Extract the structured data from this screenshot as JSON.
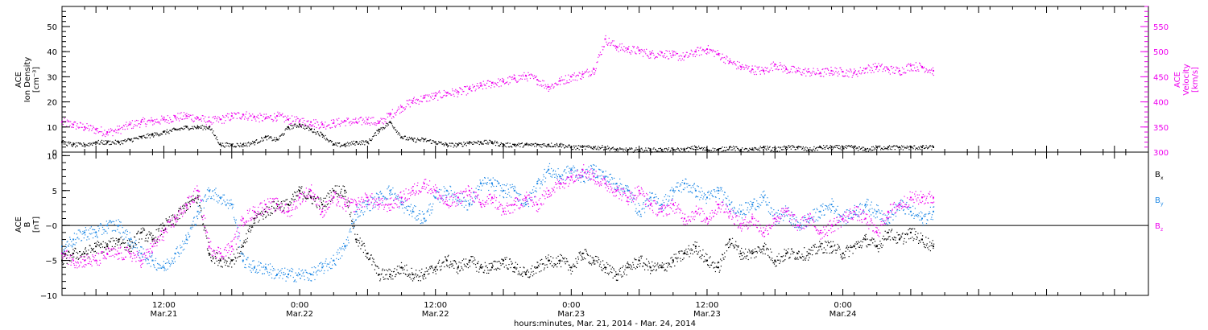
{
  "chart_data": [
    {
      "type": "scatter",
      "panel": "plasma",
      "left_axis_label_lines": [
        "ACE",
        "Ion Density",
        "[cm⁻³]"
      ],
      "right_axis_label_lines": [
        "ACE",
        "Velocity",
        "[km/s]"
      ],
      "left_ylim": [
        0,
        58
      ],
      "left_yticks": [
        0,
        10,
        20,
        30,
        40,
        50
      ],
      "right_ylim": [
        300,
        590
      ],
      "right_yticks": [
        300,
        350,
        400,
        450,
        500,
        550
      ],
      "grid": false,
      "colors": {
        "density": "#000000",
        "velocity": "#ee00ee"
      },
      "series": [
        {
          "key": "density",
          "axis": "left",
          "x_hours": [
            0,
            1,
            2,
            3,
            4,
            5,
            6,
            7,
            8,
            9,
            10,
            11,
            12,
            13,
            14,
            15,
            16,
            17,
            18,
            19,
            20,
            21,
            22,
            23,
            24,
            25,
            26,
            27,
            28,
            29,
            30,
            31,
            32,
            33,
            34,
            35,
            36,
            37,
            38,
            39,
            40,
            41,
            42,
            43,
            44,
            45,
            46,
            47,
            48,
            49,
            50,
            51,
            52,
            53,
            54,
            55,
            56,
            57,
            58,
            59,
            60,
            61,
            62,
            63,
            64,
            65,
            66,
            67,
            68,
            69,
            70,
            71,
            72,
            73,
            74,
            75,
            76,
            77
          ],
          "values": [
            4,
            3,
            3,
            4,
            4,
            4,
            5,
            6,
            7,
            8,
            9,
            10,
            10,
            10,
            3,
            3,
            3,
            4,
            6,
            5,
            10,
            11,
            9,
            7,
            3,
            3,
            4,
            4,
            9,
            12,
            6,
            5,
            5,
            4,
            3,
            3,
            4,
            4,
            4,
            3,
            3,
            3,
            3,
            3,
            3,
            2,
            2,
            2,
            2,
            1,
            1,
            1,
            1,
            1,
            1,
            1,
            2,
            1,
            1,
            2,
            1,
            1,
            2,
            1,
            2,
            2,
            1,
            2,
            2,
            2,
            2,
            1,
            2,
            2,
            2,
            2,
            2,
            2
          ]
        },
        {
          "key": "velocity",
          "axis": "right",
          "x_hours": [
            0,
            1,
            2,
            3,
            4,
            5,
            6,
            7,
            8,
            9,
            10,
            11,
            12,
            13,
            14,
            15,
            16,
            17,
            18,
            19,
            20,
            21,
            22,
            23,
            24,
            25,
            26,
            27,
            28,
            29,
            30,
            31,
            32,
            33,
            34,
            35,
            36,
            37,
            38,
            39,
            40,
            41,
            42,
            43,
            44,
            45,
            46,
            47,
            48,
            49,
            50,
            51,
            52,
            53,
            54,
            55,
            56,
            57,
            58,
            59,
            60,
            61,
            62,
            63,
            64,
            65,
            66,
            67,
            68,
            69,
            70,
            71,
            72,
            73,
            74,
            75,
            76,
            77
          ],
          "values": [
            360,
            355,
            350,
            345,
            340,
            345,
            355,
            360,
            362,
            365,
            370,
            372,
            368,
            362,
            365,
            372,
            375,
            370,
            368,
            372,
            365,
            362,
            360,
            355,
            358,
            362,
            360,
            365,
            358,
            375,
            390,
            402,
            408,
            412,
            418,
            420,
            425,
            432,
            438,
            440,
            447,
            452,
            444,
            430,
            442,
            450,
            455,
            465,
            525,
            510,
            505,
            502,
            495,
            498,
            493,
            490,
            500,
            505,
            495,
            480,
            470,
            465,
            462,
            475,
            465,
            462,
            460,
            458,
            462,
            460,
            458,
            466,
            470,
            465,
            462,
            472,
            470,
            462
          ]
        }
      ]
    },
    {
      "type": "scatter",
      "panel": "magnetic",
      "left_axis_label_lines": [
        "ACE",
        "B",
        "[nT]"
      ],
      "ylim": [
        -10,
        10.5
      ],
      "yticks": [
        -10,
        -5,
        0,
        5,
        10
      ],
      "ytick_labels": [
        "−10",
        "−5",
        "−0",
        "5",
        "10"
      ],
      "zero_line": true,
      "grid": false,
      "legend": {
        "placement": "right",
        "entries": [
          {
            "key": "bx",
            "label": "B",
            "sub": "x",
            "color": "#000000"
          },
          {
            "key": "by",
            "label": "B",
            "sub": "y",
            "color": "#1e88e5"
          },
          {
            "key": "bz",
            "label": "B",
            "sub": "z",
            "color": "#ee00ee"
          }
        ]
      },
      "series": [
        {
          "key": "bx",
          "x_hours": [
            0,
            1,
            2,
            3,
            4,
            5,
            6,
            7,
            8,
            9,
            10,
            11,
            12,
            13,
            14,
            15,
            16,
            17,
            18,
            19,
            20,
            21,
            22,
            23,
            24,
            25,
            26,
            27,
            28,
            29,
            30,
            31,
            32,
            33,
            34,
            35,
            36,
            37,
            38,
            39,
            40,
            41,
            42,
            43,
            44,
            45,
            46,
            47,
            48,
            49,
            50,
            51,
            52,
            53,
            54,
            55,
            56,
            57,
            58,
            59,
            60,
            61,
            62,
            63,
            64,
            65,
            66,
            67,
            68,
            69,
            70,
            71,
            72,
            73,
            74,
            75,
            76,
            77
          ],
          "values": [
            -5,
            -4,
            -4,
            -3,
            -3,
            -2,
            -3,
            -1,
            -2,
            0,
            1,
            3,
            4,
            -4,
            -5,
            -5,
            -3,
            1,
            2,
            3,
            3,
            5,
            4,
            3,
            5,
            5,
            -2,
            -4,
            -7,
            -7,
            -6,
            -7,
            -7,
            -6,
            -5,
            -6,
            -5,
            -6,
            -6,
            -5,
            -6,
            -7,
            -6,
            -5,
            -5,
            -6,
            -4,
            -5,
            -6,
            -7,
            -6,
            -5,
            -6,
            -6,
            -5,
            -4,
            -3,
            -5,
            -6,
            -2,
            -4,
            -4,
            -3,
            -5,
            -4,
            -4,
            -4,
            -3,
            -3,
            -4,
            -3,
            -2,
            -3,
            -1,
            -2,
            -1,
            -2,
            -3
          ]
        },
        {
          "key": "by",
          "x_hours": [
            0,
            1,
            2,
            3,
            4,
            5,
            6,
            7,
            8,
            9,
            10,
            11,
            12,
            13,
            14,
            15,
            16,
            17,
            18,
            19,
            20,
            21,
            22,
            23,
            24,
            25,
            26,
            27,
            28,
            29,
            30,
            31,
            32,
            33,
            34,
            35,
            36,
            37,
            38,
            39,
            40,
            41,
            42,
            43,
            44,
            45,
            46,
            47,
            48,
            49,
            50,
            51,
            52,
            53,
            54,
            55,
            56,
            57,
            58,
            59,
            60,
            61,
            62,
            63,
            64,
            65,
            66,
            67,
            68,
            69,
            70,
            71,
            72,
            73,
            74,
            75,
            76,
            77
          ],
          "values": [
            -3,
            -2,
            -1,
            -1,
            0,
            0,
            -2,
            -4,
            -5,
            -6,
            -4,
            -2,
            2,
            5,
            4,
            3,
            -5,
            -6,
            -6,
            -7,
            -7,
            -7,
            -7,
            -6,
            -5,
            -3,
            2,
            3,
            4,
            5,
            3,
            2,
            1,
            4,
            5,
            4,
            3,
            6,
            6,
            5,
            5,
            3,
            6,
            8,
            7,
            8,
            7,
            8,
            7,
            6,
            5,
            2,
            4,
            3,
            5,
            6,
            5,
            4,
            5,
            3,
            2,
            3,
            4,
            1,
            2,
            0,
            1,
            2,
            3,
            1,
            2,
            3,
            2,
            1,
            3,
            2,
            1,
            2
          ]
        },
        {
          "key": "bz",
          "x_hours": [
            0,
            1,
            2,
            3,
            4,
            5,
            6,
            7,
            8,
            9,
            10,
            11,
            12,
            13,
            14,
            15,
            16,
            17,
            18,
            19,
            20,
            21,
            22,
            23,
            24,
            25,
            26,
            27,
            28,
            29,
            30,
            31,
            32,
            33,
            34,
            35,
            36,
            37,
            38,
            39,
            40,
            41,
            42,
            43,
            44,
            45,
            46,
            47,
            48,
            49,
            50,
            51,
            52,
            53,
            54,
            55,
            56,
            57,
            58,
            59,
            60,
            61,
            62,
            63,
            64,
            65,
            66,
            67,
            68,
            69,
            70,
            71,
            72,
            73,
            74,
            75,
            76,
            77
          ],
          "values": [
            -4,
            -5,
            -5,
            -5,
            -4,
            -4,
            -4,
            -5,
            -3,
            -1,
            1,
            3,
            5,
            -3,
            -4,
            -3,
            1,
            2,
            3,
            3,
            2,
            4,
            5,
            2,
            4,
            3,
            3,
            4,
            3,
            3,
            4,
            5,
            6,
            5,
            3,
            4,
            5,
            3,
            4,
            2,
            3,
            4,
            3,
            5,
            6,
            7,
            8,
            7,
            6,
            5,
            4,
            5,
            3,
            2,
            3,
            1,
            2,
            1,
            3,
            2,
            0,
            1,
            -1,
            1,
            2,
            0,
            1,
            -1,
            0,
            1,
            2,
            1,
            -1,
            2,
            3,
            4,
            4,
            4
          ]
        }
      ]
    }
  ],
  "time_axis": {
    "range_hours": [
      0,
      96
    ],
    "start_hour_of_day": 3,
    "ticks": [
      {
        "hour": 9,
        "time": "12:00",
        "date": "Mar.21"
      },
      {
        "hour": 21,
        "time": "0:00",
        "date": "Mar.22"
      },
      {
        "hour": 33,
        "time": "12:00",
        "date": "Mar.22"
      },
      {
        "hour": 45,
        "time": "0:00",
        "date": "Mar.23"
      },
      {
        "hour": 57,
        "time": "12:00",
        "date": "Mar.23"
      },
      {
        "hour": 69,
        "time": "0:00",
        "date": "Mar.24"
      }
    ],
    "title": "hours:minutes, Mar. 21, 2014 - Mar. 24, 2014"
  }
}
